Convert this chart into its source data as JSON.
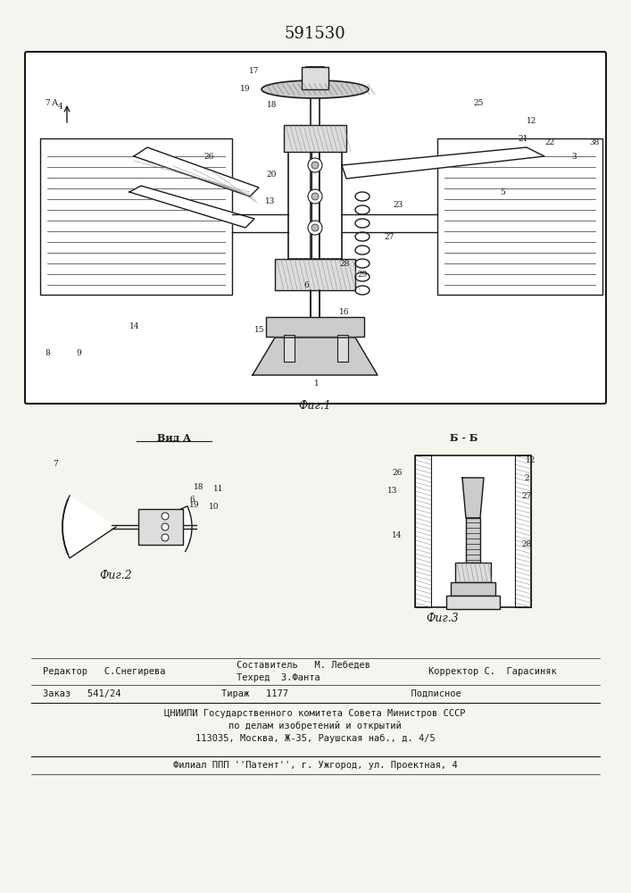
{
  "patent_number": "591530",
  "fig1_caption": "Фиг.1",
  "fig2_caption": "Фиг.2",
  "fig3_caption": "Фиг.3",
  "vid_a_label": "Вид А",
  "bb_label": "Б - Б",
  "editor_line1": "Редактор   С.Снегирева",
  "editor_line2_col1": "Составитель   М. Лебедев",
  "editor_line2_col2": "Техред  З.Фанта",
  "editor_line2_col3": "Корректор С.  Гарасиняк",
  "order_line": "Заказ   541/24                  Тираж   1177                      Подписное",
  "cniip_line1": "ЦНИИПИ Государственного комитета Совета Министров СССР",
  "cniip_line2": "по делам изобретений и открытий",
  "address_line": "113035, Москва, Ж-35, Раушская наб., д. 4/5",
  "filial_line": "Филиал ППП ''Патент'', г. Ужгород, ул. Проектная, 4",
  "bg_color": "#f5f5f0",
  "line_color": "#1a1a1a",
  "text_color": "#1a1a1a"
}
